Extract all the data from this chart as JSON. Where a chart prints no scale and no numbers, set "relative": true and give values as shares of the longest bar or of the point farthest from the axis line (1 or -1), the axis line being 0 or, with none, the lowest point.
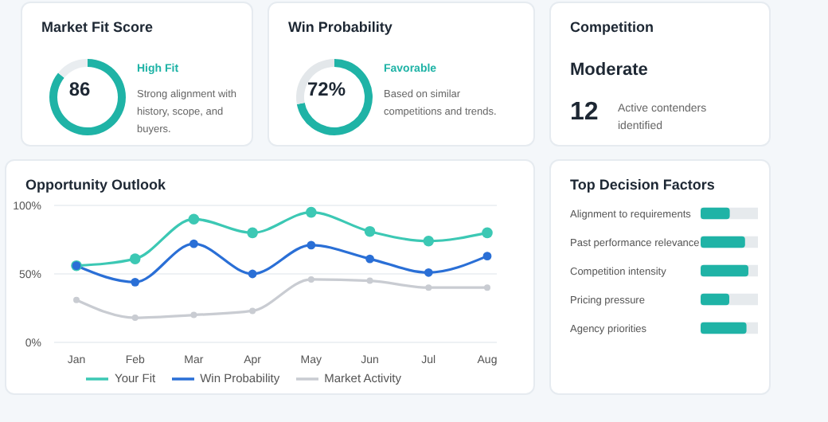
{
  "chart_data": [
    {
      "type": "donut",
      "title": "Market Fit Score",
      "categories": [
        null,
        null
      ],
      "values": [
        86,
        14
      ],
      "colors": [
        "#1fb3a6",
        "#e9edf0"
      ],
      "annotations": [
        "86",
        "High Fit",
        "Strong alignment with history, scope, and buyers."
      ]
    },
    {
      "type": "donut",
      "title": "Win Probability",
      "categories": [
        null,
        null
      ],
      "values": [
        72,
        28
      ],
      "colors": [
        "#1fb3a6",
        "#e3e7ea"
      ],
      "annotations": [
        "72%",
        "Favorable",
        "Based on similar competitions and trends."
      ]
    },
    {
      "type": "other",
      "title": "Competition",
      "annotations": [
        "Moderate",
        "12",
        "Active contenders identified"
      ]
    },
    {
      "type": "line",
      "title": "Opportunity Outlook",
      "categories": [
        "Jan",
        "Feb",
        "Mar",
        "Apr",
        "May",
        "Jun",
        "Jul",
        "Aug"
      ],
      "ylim": [
        0,
        100
      ],
      "yticks": [
        {
          "value": 0,
          "label": "0%"
        },
        {
          "value": 50,
          "label": "50%"
        },
        {
          "value": 100,
          "label": "100%"
        }
      ],
      "grid": "y",
      "legend": "bottom",
      "marker": "circle",
      "series": [
        {
          "name": "Your Fit",
          "color": "#3cc8b4",
          "values": [
            56,
            61,
            90,
            80,
            95,
            81,
            74,
            80
          ]
        },
        {
          "name": "Win Probability",
          "color": "#2a6fd6",
          "values": [
            56,
            44,
            72,
            50,
            71,
            61,
            51,
            63
          ]
        },
        {
          "name": "Market Activity",
          "color": "#c9ccd2",
          "values": [
            31,
            18,
            20,
            23,
            46,
            45,
            40,
            40
          ]
        }
      ]
    },
    {
      "type": "bar",
      "orientation": "horizontal",
      "relative": true,
      "title": "Top Decision Factors",
      "categories": [
        "Alignment to requirements",
        "Past performance relevance",
        "Competition intensity",
        "Pricing pressure",
        "Agency priorities"
      ],
      "values": [
        0.61,
        0.93,
        1,
        0.6,
        0.96
      ],
      "color": "#1fb3a6"
    }
  ]
}
